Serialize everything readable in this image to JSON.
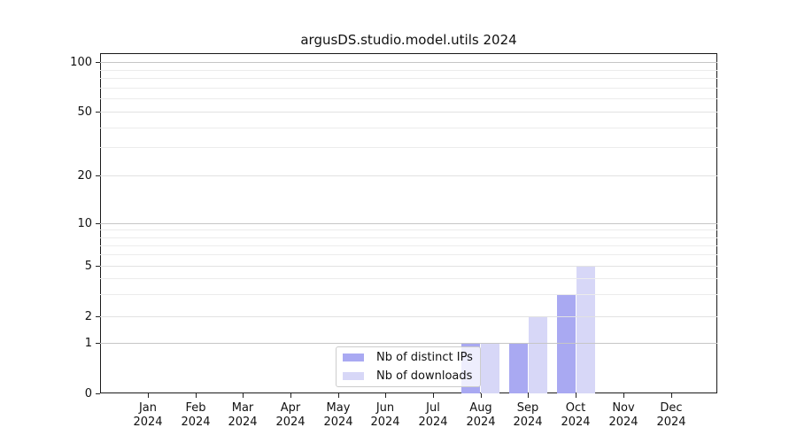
{
  "chart_data": {
    "type": "bar",
    "title": "argusDS.studio.model.utils 2024",
    "categories": [
      "Jan 2024",
      "Feb 2024",
      "Mar 2024",
      "Apr 2024",
      "May 2024",
      "Jun 2024",
      "Jul 2024",
      "Aug 2024",
      "Sep 2024",
      "Oct 2024",
      "Nov 2024",
      "Dec 2024"
    ],
    "series": [
      {
        "name": "Nb of distinct IPs",
        "color": "#a9a9f2",
        "values": [
          0,
          0,
          0,
          0,
          0,
          0,
          0,
          1,
          1,
          3,
          0,
          0
        ]
      },
      {
        "name": "Nb of downloads",
        "color": "#d7d7f7",
        "values": [
          0,
          0,
          0,
          0,
          0,
          0,
          0,
          1,
          2,
          5,
          0,
          0
        ]
      }
    ],
    "xlabel": "",
    "ylabel": "",
    "yscale": "symlog",
    "yticks": [
      0,
      1,
      2,
      5,
      10,
      20,
      50,
      100
    ],
    "ylim": [
      0,
      113
    ],
    "grid": true,
    "grid_minor": true,
    "legend_position": "inside lower-center",
    "background_color": "#ffffff",
    "text_color": "#111111"
  }
}
